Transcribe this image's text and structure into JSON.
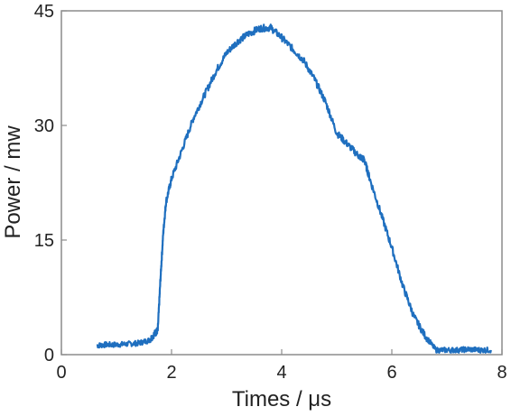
{
  "chart_data": {
    "type": "line",
    "title": "",
    "xlabel": "Times / μs",
    "ylabel": "Power / mw",
    "xlim": [
      0,
      8
    ],
    "ylim": [
      0,
      45
    ],
    "xticks": [
      0,
      2,
      4,
      6,
      8
    ],
    "yticks": [
      0,
      15,
      30,
      45
    ],
    "grid": false,
    "legend": "none",
    "series": [
      {
        "color": "#1f6fbf",
        "x": [
          0.65,
          0.8,
          1.0,
          1.2,
          1.4,
          1.6,
          1.7,
          1.75,
          1.8,
          1.85,
          1.9,
          2.0,
          2.2,
          2.4,
          2.6,
          2.8,
          3.0,
          3.2,
          3.4,
          3.6,
          3.8,
          4.0,
          4.2,
          4.4,
          4.6,
          4.8,
          5.0,
          5.2,
          5.4,
          5.5,
          5.6,
          5.8,
          6.0,
          6.2,
          6.4,
          6.6,
          6.8,
          7.0,
          7.2,
          7.4,
          7.6,
          7.8
        ],
        "y": [
          1.2,
          1.3,
          1.3,
          1.4,
          1.5,
          1.9,
          2.8,
          3.2,
          10.0,
          16.0,
          20.0,
          23.0,
          27.0,
          31.0,
          34.0,
          37.0,
          39.5,
          41.0,
          42.0,
          42.7,
          42.8,
          41.5,
          40.0,
          38.5,
          36.0,
          33.0,
          29.0,
          27.5,
          26.0,
          25.5,
          23.0,
          18.5,
          14.0,
          9.0,
          5.0,
          2.5,
          0.6,
          0.6,
          0.6,
          0.7,
          0.6,
          0.6
        ]
      }
    ]
  }
}
